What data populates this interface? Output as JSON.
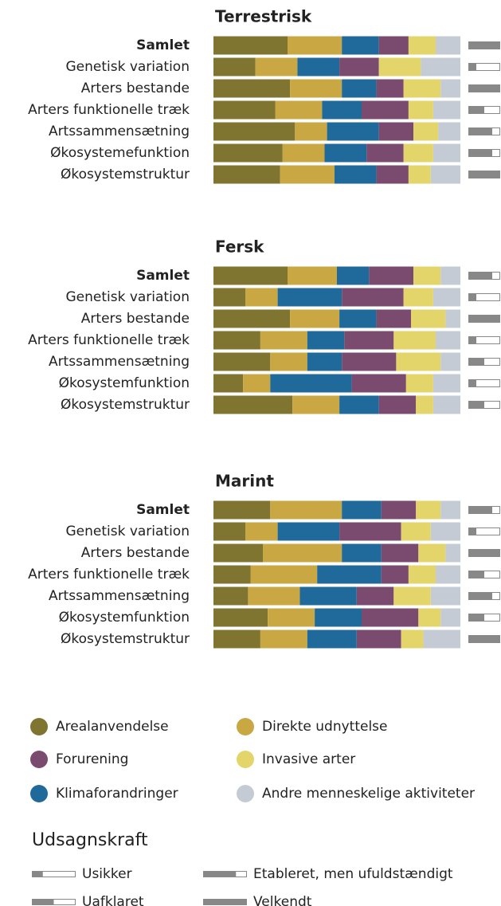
{
  "chart_data": [
    {
      "type": "stacked-bar-100",
      "title": "Terrestrisk",
      "xlim": [
        0,
        100
      ],
      "categories": [
        "Samlet",
        "Genetisk variation",
        "Arters bestande",
        "Arters funktionelle træk",
        "Artssammensætning",
        "Økosystemefunktion",
        "Økosystemstruktur"
      ],
      "series": [
        {
          "name": "Arealanvendelse",
          "color": "#7f7530",
          "values": [
            30,
            17,
            31,
            25,
            33,
            28,
            27
          ]
        },
        {
          "name": "Direkte udnyttelse",
          "color": "#c9a844",
          "values": [
            22,
            17,
            21,
            19,
            13,
            17,
            22
          ]
        },
        {
          "name": "Klimaforandringer",
          "color": "#1f6a9a",
          "values": [
            15,
            17,
            14,
            16,
            21,
            17,
            17
          ]
        },
        {
          "name": "Forurening",
          "color": "#7a4b6e",
          "values": [
            12,
            16,
            11,
            19,
            14,
            15,
            13
          ]
        },
        {
          "name": "Invasive arter",
          "color": "#e4d56a",
          "values": [
            11,
            17,
            15,
            10,
            10,
            12,
            9
          ]
        },
        {
          "name": "Andre menneskelige aktiviteter",
          "color": "#c5cbd5",
          "values": [
            10,
            16,
            8,
            11,
            9,
            11,
            12
          ]
        }
      ],
      "confidence": [
        4,
        1,
        4,
        2,
        3,
        3,
        4
      ]
    },
    {
      "type": "stacked-bar-100",
      "title": "Fersk",
      "xlim": [
        0,
        100
      ],
      "categories": [
        "Samlet",
        "Genetisk variation",
        "Arters bestande",
        "Arters funktionelle træk",
        "Artssammensætning",
        "Økosystemfunktion",
        "Økosystemstruktur"
      ],
      "series": [
        {
          "name": "Arealanvendelse",
          "color": "#7f7530",
          "values": [
            30,
            13,
            31,
            19,
            23,
            12,
            32
          ]
        },
        {
          "name": "Direkte udnyttelse",
          "color": "#c9a844",
          "values": [
            20,
            13,
            20,
            19,
            15,
            11,
            19
          ]
        },
        {
          "name": "Klimaforandringer",
          "color": "#1f6a9a",
          "values": [
            13,
            26,
            15,
            15,
            14,
            33,
            16
          ]
        },
        {
          "name": "Forurening",
          "color": "#7a4b6e",
          "values": [
            18,
            25,
            14,
            20,
            22,
            22,
            15
          ]
        },
        {
          "name": "Invasive arter",
          "color": "#e4d56a",
          "values": [
            11,
            12,
            14,
            17,
            18,
            11,
            7
          ]
        },
        {
          "name": "Andre menneskelige aktiviteter",
          "color": "#c5cbd5",
          "values": [
            8,
            11,
            6,
            10,
            8,
            11,
            11
          ]
        }
      ],
      "confidence": [
        3,
        1,
        4,
        1,
        2,
        1,
        2
      ]
    },
    {
      "type": "stacked-bar-100",
      "title": "Marint",
      "xlim": [
        0,
        100
      ],
      "categories": [
        "Samlet",
        "Genetisk variation",
        "Arters bestande",
        "Arters funktionelle træk",
        "Artssammensætning",
        "Økosystemfunktion",
        "Økosystemstruktur"
      ],
      "series": [
        {
          "name": "Arealanvendelse",
          "color": "#7f7530",
          "values": [
            23,
            13,
            20,
            15,
            14,
            22,
            19
          ]
        },
        {
          "name": "Direkte udnyttelse",
          "color": "#c9a844",
          "values": [
            29,
            13,
            32,
            27,
            21,
            19,
            19
          ]
        },
        {
          "name": "Klimaforandringer",
          "color": "#1f6a9a",
          "values": [
            16,
            25,
            16,
            26,
            23,
            19,
            20
          ]
        },
        {
          "name": "Forurening",
          "color": "#7a4b6e",
          "values": [
            14,
            25,
            15,
            11,
            15,
            23,
            18
          ]
        },
        {
          "name": "Invasive arter",
          "color": "#e4d56a",
          "values": [
            10,
            12,
            11,
            11,
            15,
            9,
            9
          ]
        },
        {
          "name": "Andre menneskelige aktiviteter",
          "color": "#c5cbd5",
          "values": [
            8,
            12,
            6,
            10,
            12,
            8,
            15
          ]
        }
      ],
      "confidence": [
        3,
        1,
        4,
        2,
        3,
        2,
        4
      ]
    }
  ],
  "confidence_legend": {
    "title": "Udsagnskraft",
    "levels": [
      {
        "label": "Usikker",
        "level": 1
      },
      {
        "label": "Uafklaret",
        "level": 2
      },
      {
        "label": "Etableret, men ufuldstændigt",
        "level": 3
      },
      {
        "label": "Velkendt",
        "level": 4
      }
    ]
  }
}
